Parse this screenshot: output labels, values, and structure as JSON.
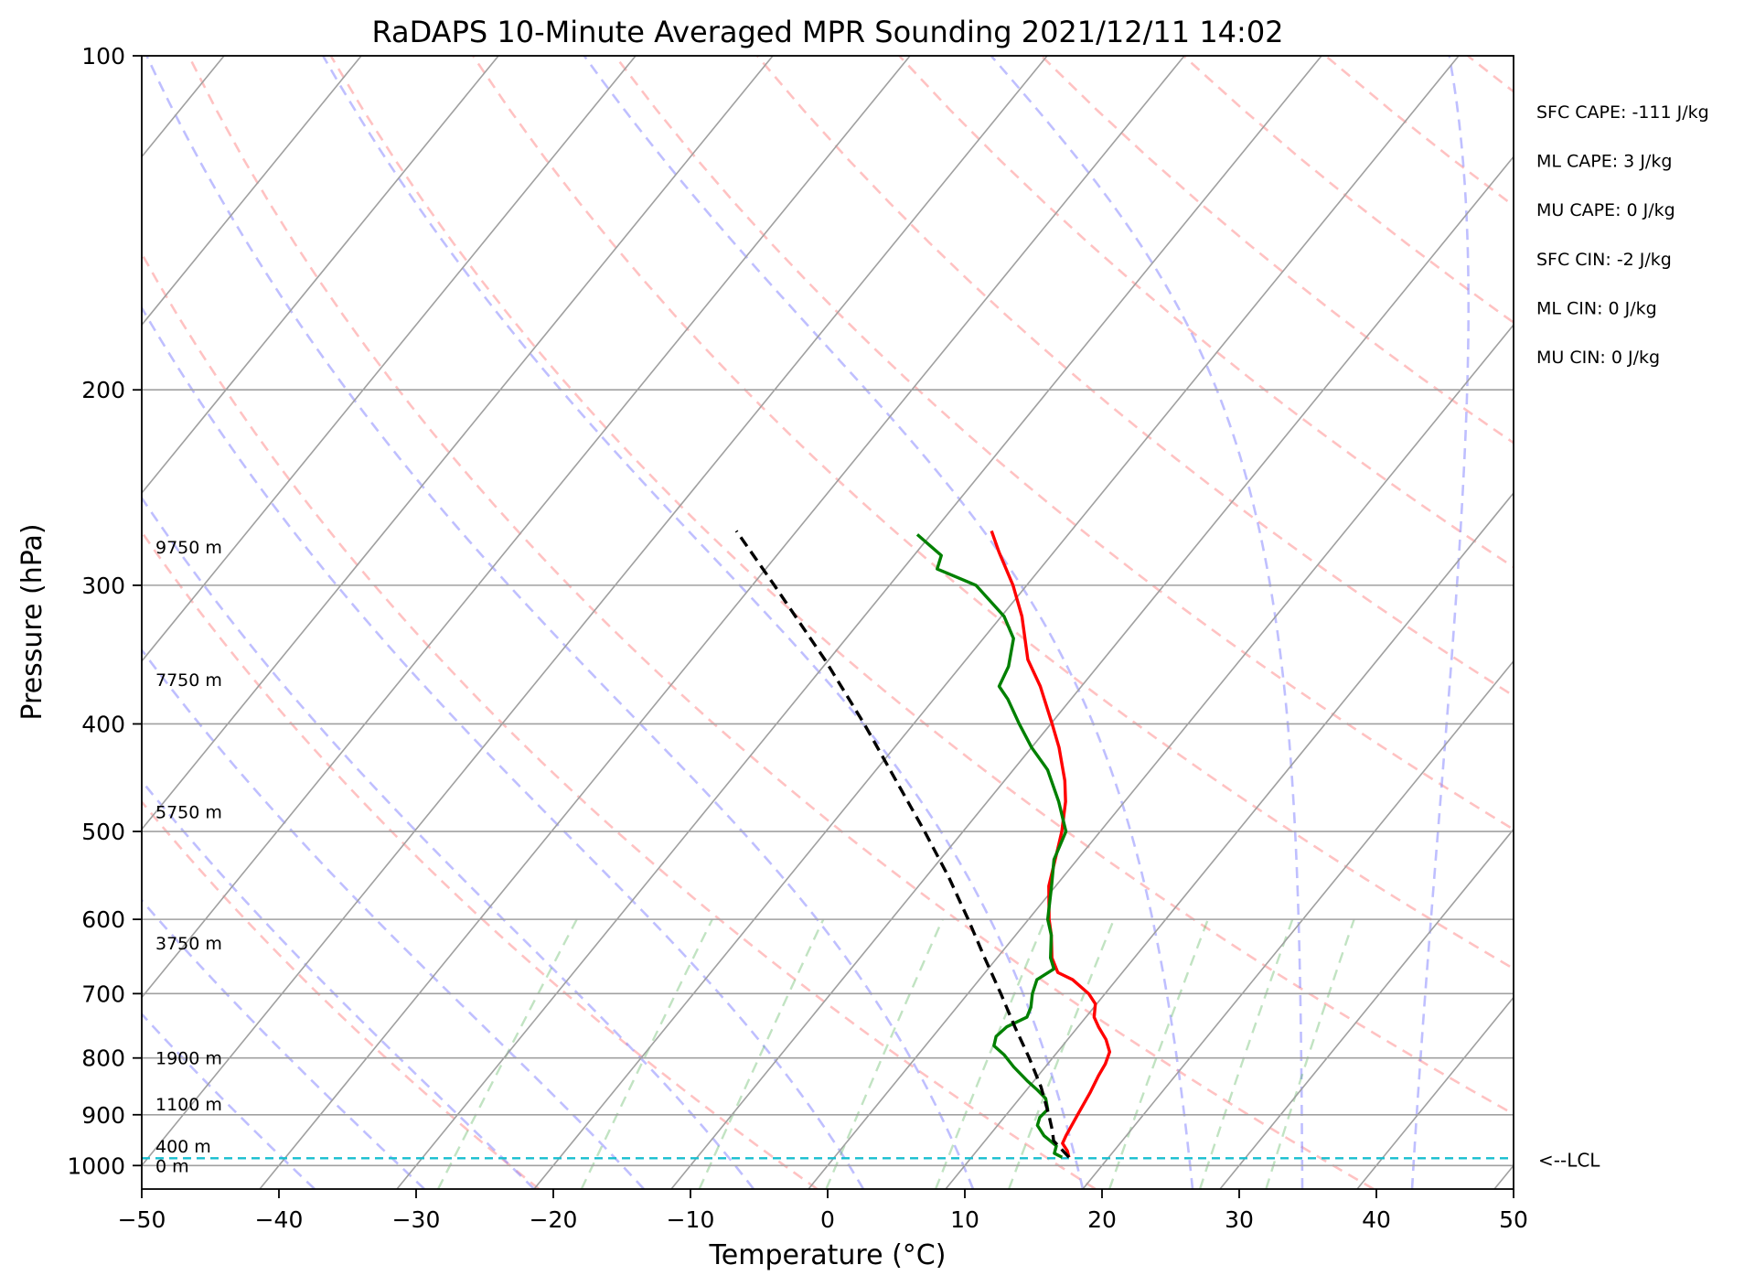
{
  "chart_data": {
    "type": "line",
    "subtype": "skew-t log-p sounding",
    "title": "RaDAPS 10-Minute Averaged MPR Sounding 2021/12/11 14:02",
    "xlabel": "Temperature (°C)",
    "ylabel": "Pressure (hPa)",
    "xlim": [
      -50,
      50
    ],
    "ylim": [
      1050,
      100
    ],
    "y_scale": "log",
    "x_ticks": [
      "−50",
      "−40",
      "−30",
      "−20",
      "−10",
      "0",
      "10",
      "20",
      "30",
      "40",
      "50"
    ],
    "y_ticks": [
      "100",
      "200",
      "300",
      "400",
      "500",
      "600",
      "700",
      "800",
      "900",
      "1000"
    ],
    "grid": true,
    "height_labels": [
      {
        "text": "0 m",
        "p": 1000
      },
      {
        "text": "400 m",
        "p": 960
      },
      {
        "text": "1100 m",
        "p": 880
      },
      {
        "text": "1900 m",
        "p": 800
      },
      {
        "text": "3750 m",
        "p": 630
      },
      {
        "text": "5750 m",
        "p": 480
      },
      {
        "text": "7750 m",
        "p": 365
      },
      {
        "text": "9750 m",
        "p": 277
      }
    ],
    "annotations": [
      "SFC CAPE: -111 J/kg",
      "ML CAPE: 3 J/kg",
      "MU CAPE: 0 J/kg",
      "SFC CIN: -2 J/kg",
      "ML CIN: 0 J/kg",
      "MU CIN: 0 J/kg"
    ],
    "lcl": {
      "label": "<--LCL",
      "p": 985
    },
    "series": [
      {
        "role": "temperature",
        "color": "#ff0000",
        "points": [
          [
            983,
            17.1
          ],
          [
            970,
            16.6
          ],
          [
            955,
            15.8
          ],
          [
            940,
            15.6
          ],
          [
            900,
            15.2
          ],
          [
            860,
            14.8
          ],
          [
            830,
            14.4
          ],
          [
            810,
            14.2
          ],
          [
            790,
            13.8
          ],
          [
            770,
            12.8
          ],
          [
            750,
            11.5
          ],
          [
            735,
            10.6
          ],
          [
            715,
            9.9
          ],
          [
            700,
            8.8
          ],
          [
            680,
            6.8
          ],
          [
            670,
            5.3
          ],
          [
            650,
            4.0
          ],
          [
            620,
            2.6
          ],
          [
            600,
            1.5
          ],
          [
            560,
            -0.5
          ],
          [
            520,
            -2.0
          ],
          [
            500,
            -2.8
          ],
          [
            470,
            -4.3
          ],
          [
            450,
            -5.6
          ],
          [
            420,
            -8.0
          ],
          [
            400,
            -9.9
          ],
          [
            370,
            -13.0
          ],
          [
            350,
            -15.5
          ],
          [
            320,
            -18.5
          ],
          [
            300,
            -21.0
          ],
          [
            280,
            -24.0
          ],
          [
            268,
            -25.8
          ]
        ]
      },
      {
        "role": "dewpoint",
        "color": "#008000",
        "points": [
          [
            983,
            16.6
          ],
          [
            975,
            15.8
          ],
          [
            960,
            15.5
          ],
          [
            940,
            14.0
          ],
          [
            920,
            12.9
          ],
          [
            905,
            12.6
          ],
          [
            890,
            12.7
          ],
          [
            870,
            11.9
          ],
          [
            855,
            10.8
          ],
          [
            840,
            9.6
          ],
          [
            815,
            7.7
          ],
          [
            795,
            6.3
          ],
          [
            780,
            5.0
          ],
          [
            765,
            4.6
          ],
          [
            750,
            4.8
          ],
          [
            735,
            5.7
          ],
          [
            720,
            5.4
          ],
          [
            700,
            4.7
          ],
          [
            680,
            4.2
          ],
          [
            665,
            4.8
          ],
          [
            650,
            3.9
          ],
          [
            620,
            2.6
          ],
          [
            600,
            1.4
          ],
          [
            560,
            -0.3
          ],
          [
            530,
            -1.7
          ],
          [
            500,
            -2.5
          ],
          [
            470,
            -4.8
          ],
          [
            440,
            -7.5
          ],
          [
            420,
            -10.0
          ],
          [
            400,
            -12.3
          ],
          [
            380,
            -14.6
          ],
          [
            370,
            -16.0
          ],
          [
            355,
            -16.5
          ],
          [
            335,
            -17.8
          ],
          [
            320,
            -19.8
          ],
          [
            300,
            -23.7
          ],
          [
            290,
            -27.5
          ],
          [
            282,
            -28.0
          ],
          [
            270,
            -31.0
          ]
        ]
      },
      {
        "role": "parcel",
        "color": "#000000",
        "style": "dashed",
        "points": [
          [
            983,
            17.1
          ],
          [
            950,
            15.0
          ],
          [
            930,
            14.3
          ],
          [
            900,
            13.1
          ],
          [
            850,
            10.9
          ],
          [
            800,
            8.3
          ],
          [
            750,
            5.4
          ],
          [
            700,
            2.4
          ],
          [
            650,
            -0.9
          ],
          [
            600,
            -4.4
          ],
          [
            550,
            -8.3
          ],
          [
            500,
            -12.8
          ],
          [
            450,
            -17.9
          ],
          [
            400,
            -23.6
          ],
          [
            350,
            -30.3
          ],
          [
            300,
            -38.4
          ],
          [
            268,
            -44.4
          ]
        ]
      }
    ]
  }
}
